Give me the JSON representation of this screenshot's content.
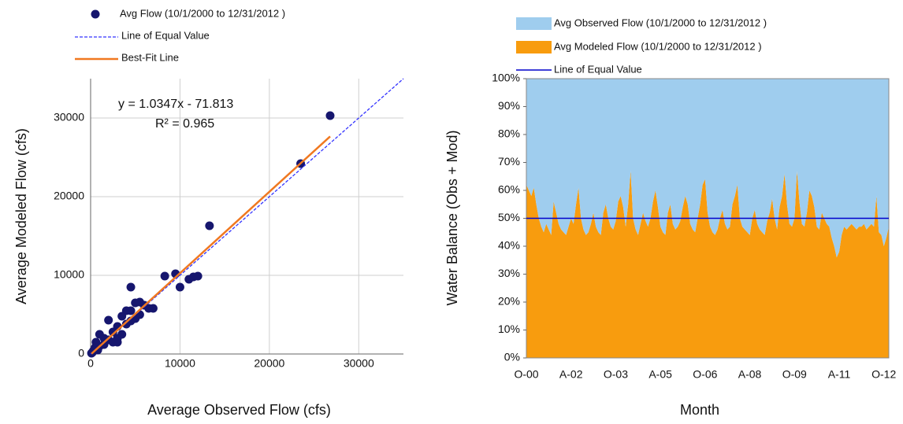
{
  "chart_data": [
    {
      "type": "scatter",
      "xlabel": "Average Observed Flow (cfs)",
      "ylabel": "Average Modeled Flow (cfs)",
      "annotations": [
        "y = 1.0347x  - 71.813",
        "R² = 0.965"
      ],
      "xlim": [
        0,
        35000
      ],
      "ylim": [
        0,
        35000
      ],
      "xticks": [
        0,
        10000,
        20000,
        30000
      ],
      "yticks": [
        0,
        10000,
        20000,
        30000
      ],
      "grid": true,
      "series": [
        {
          "name": "Avg Flow (10/1/2000 to 12/31/2012 )",
          "type": "scatter",
          "color": "#16166e",
          "x": [
            26800,
            23500,
            13300,
            9500,
            8300,
            10000,
            11000,
            11500,
            12000,
            4500,
            7000,
            5000,
            5500,
            6000,
            4000,
            4500,
            3500,
            2000,
            3000,
            2500,
            4500,
            5000,
            1000,
            1500,
            2000,
            3000,
            3500,
            2500,
            1000,
            500,
            300,
            200,
            800,
            1500,
            600,
            100,
            3000,
            4000,
            6500,
            5500
          ],
          "values": [
            30300,
            24200,
            16300,
            10200,
            9900,
            8500,
            9500,
            9800,
            9900,
            8500,
            5800,
            6500,
            6600,
            6200,
            5500,
            5500,
            4800,
            4300,
            3500,
            2800,
            4200,
            4500,
            2500,
            2000,
            1800,
            2000,
            2500,
            1500,
            1000,
            800,
            400,
            200,
            500,
            1200,
            1500,
            100,
            1500,
            3800,
            5800,
            5000
          ]
        },
        {
          "name": "Line of Equal Value",
          "type": "line",
          "dash": true,
          "color": "#3333ff",
          "x": [
            0,
            35000
          ],
          "values": [
            0,
            35000
          ]
        },
        {
          "name": "Best-Fit Line",
          "type": "line",
          "dash": false,
          "color": "#f07820",
          "x": [
            100,
            26800
          ],
          "values": [
            32,
            27658
          ]
        }
      ]
    },
    {
      "type": "area",
      "stacked": true,
      "xlabel": "Month",
      "ylabel": "Water Balance (Obs + Mod)",
      "categories": [
        "O-00",
        null,
        null,
        null,
        null,
        null,
        null,
        null,
        null,
        null,
        null,
        null,
        null,
        null,
        null,
        null,
        null,
        null,
        "A-02",
        null,
        null,
        null,
        null,
        null,
        null,
        null,
        null,
        null,
        null,
        null,
        null,
        null,
        null,
        null,
        null,
        null,
        "O-03",
        null,
        null,
        null,
        null,
        null,
        null,
        null,
        null,
        null,
        null,
        null,
        null,
        null,
        null,
        null,
        null,
        null,
        "A-05",
        null,
        null,
        null,
        null,
        null,
        null,
        null,
        null,
        null,
        null,
        null,
        null,
        null,
        null,
        null,
        null,
        null,
        "O-06",
        null,
        null,
        null,
        null,
        null,
        null,
        null,
        null,
        null,
        null,
        null,
        null,
        null,
        null,
        null,
        null,
        null,
        "A-08",
        null,
        null,
        null,
        null,
        null,
        null,
        null,
        null,
        null,
        null,
        null,
        null,
        null,
        null,
        null,
        null,
        null,
        "O-09",
        null,
        null,
        null,
        null,
        null,
        null,
        null,
        null,
        null,
        null,
        null,
        null,
        null,
        null,
        null,
        null,
        null,
        "A-11",
        null,
        null,
        null,
        null,
        null,
        null,
        null,
        null,
        null,
        null,
        null,
        null,
        null,
        null,
        null,
        null,
        null,
        "O-12",
        null,
        null
      ],
      "ylim": [
        0,
        100
      ],
      "yticks": [
        {
          "value": 0,
          "label": "0%"
        },
        {
          "value": 10,
          "label": "10%"
        },
        {
          "value": 20,
          "label": "20%"
        },
        {
          "value": 30,
          "label": "30%"
        },
        {
          "value": 40,
          "label": "40%"
        },
        {
          "value": 50,
          "label": "50%"
        },
        {
          "value": 60,
          "label": "60%"
        },
        {
          "value": 70,
          "label": "70%"
        },
        {
          "value": 80,
          "label": "80%"
        },
        {
          "value": 90,
          "label": "90%"
        },
        {
          "value": 100,
          "label": "100%"
        }
      ],
      "series": [
        {
          "name": "Avg Modeled Flow (10/1/2000 to 12/31/2012 )",
          "color": "#f89c0e",
          "values": [
            62,
            60,
            58,
            61,
            55,
            50,
            47,
            45,
            48,
            46,
            44,
            56,
            52,
            48,
            46,
            45,
            44,
            47,
            50,
            48,
            55,
            61,
            50,
            46,
            44,
            45,
            48,
            52,
            47,
            45,
            44,
            52,
            55,
            50,
            47,
            46,
            49,
            56,
            58,
            54,
            47,
            55,
            67,
            50,
            46,
            44,
            48,
            52,
            49,
            47,
            50,
            56,
            60,
            54,
            47,
            45,
            44,
            52,
            55,
            48,
            46,
            47,
            49,
            54,
            58,
            55,
            48,
            46,
            45,
            50,
            55,
            62,
            64,
            52,
            47,
            45,
            44,
            46,
            50,
            53,
            48,
            46,
            47,
            55,
            58,
            62,
            50,
            47,
            46,
            45,
            44,
            50,
            53,
            48,
            46,
            45,
            44,
            49,
            52,
            57,
            50,
            46,
            54,
            58,
            66,
            55,
            48,
            47,
            50,
            67,
            56,
            48,
            47,
            52,
            60,
            58,
            54,
            47,
            46,
            52,
            50,
            48,
            47,
            43,
            40,
            36,
            38,
            44,
            47,
            46,
            47,
            48,
            47,
            46,
            47,
            47,
            48,
            46,
            47,
            48,
            47,
            58,
            45,
            44,
            40,
            43,
            47
          ]
        },
        {
          "name": "Avg Observed Flow (10/1/2000 to 12/31/2012 )",
          "color": "#9fcdee",
          "values": [
            38,
            40,
            42,
            39,
            45,
            50,
            53,
            55,
            52,
            54,
            56,
            44,
            48,
            52,
            54,
            55,
            56,
            53,
            50,
            52,
            45,
            39,
            50,
            54,
            56,
            55,
            52,
            48,
            53,
            55,
            56,
            48,
            45,
            50,
            53,
            54,
            51,
            44,
            42,
            46,
            53,
            45,
            33,
            50,
            54,
            56,
            52,
            48,
            51,
            53,
            50,
            44,
            40,
            46,
            53,
            55,
            56,
            48,
            45,
            52,
            54,
            53,
            51,
            46,
            42,
            45,
            52,
            54,
            55,
            50,
            45,
            38,
            36,
            48,
            53,
            55,
            56,
            54,
            50,
            47,
            52,
            54,
            53,
            45,
            42,
            38,
            50,
            53,
            54,
            55,
            56,
            50,
            47,
            52,
            54,
            55,
            56,
            51,
            48,
            43,
            50,
            54,
            46,
            42,
            34,
            45,
            52,
            53,
            50,
            33,
            44,
            52,
            53,
            48,
            40,
            42,
            46,
            53,
            54,
            48,
            50,
            52,
            53,
            57,
            60,
            64,
            62,
            56,
            53,
            54,
            53,
            52,
            53,
            54,
            53,
            53,
            52,
            54,
            53,
            52,
            53,
            42,
            55,
            56,
            60,
            57,
            53
          ]
        }
      ],
      "reference_line": {
        "name": "Line of Equal Value",
        "value": 50,
        "color": "#0000cc"
      }
    }
  ]
}
